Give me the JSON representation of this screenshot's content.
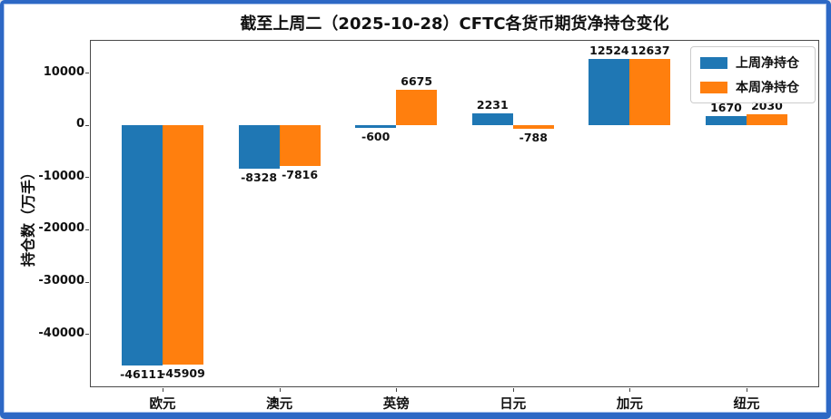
{
  "frame": {
    "border_color": "#2d68c5",
    "background": "#ffffff"
  },
  "chart_data": {
    "type": "bar",
    "title": "截至上周二（2025-10-28）CFTC各货币期货净持仓变化",
    "ylabel": "持仓数（万手）",
    "xlabel": "",
    "categories": [
      "欧元",
      "澳元",
      "英镑",
      "日元",
      "加元",
      "纽元"
    ],
    "series": [
      {
        "name": "上周净持仓",
        "color": "#1f77b4",
        "values": [
          -46111,
          -8328,
          -600,
          2231,
          12524,
          1670
        ],
        "labels": [
          "-46111",
          "-8328",
          "-600",
          "2231",
          "12524",
          "1670"
        ]
      },
      {
        "name": "本周净持仓",
        "color": "#ff7f0e",
        "values": [
          -45909,
          -7816,
          6675,
          -788,
          12637,
          2030
        ],
        "labels": [
          "-45909",
          "-7816",
          "6675",
          "-788",
          "12637",
          "2030"
        ]
      }
    ],
    "yticks": {
      "values": [
        10000,
        0,
        -10000,
        -20000,
        -30000,
        -40000
      ],
      "labels": [
        "10000",
        "0",
        "-10000",
        "-20000",
        "-30000",
        "-40000"
      ]
    },
    "ylim": [
      -50200,
      16250
    ],
    "legend": {
      "position": "upper-right",
      "entries": [
        "上周净持仓",
        "本周净持仓"
      ]
    },
    "grid": false
  }
}
